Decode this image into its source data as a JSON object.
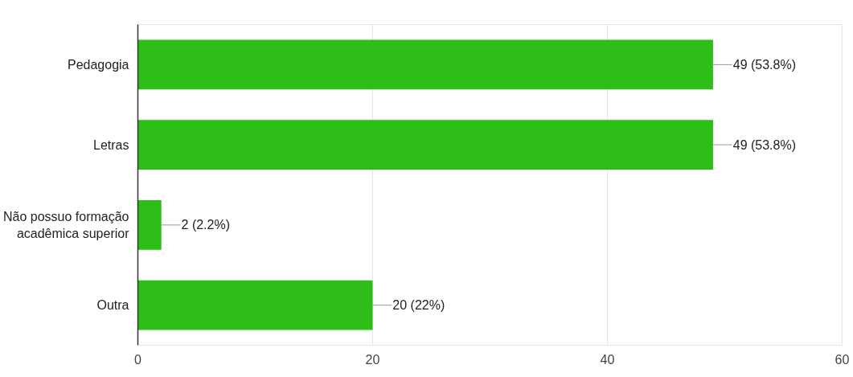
{
  "chart_data": {
    "type": "bar",
    "orientation": "horizontal",
    "categories": [
      "Pedagogia",
      "Letras",
      "Não possuo formação acadêmica superior",
      "Outra"
    ],
    "values": [
      49,
      49,
      2,
      20
    ],
    "value_labels": [
      "49 (53.8%)",
      "49 (53.8%)",
      "2 (2.2%)",
      "20 (22%)"
    ],
    "color": "#2dbe18",
    "xlim": [
      0,
      60
    ],
    "xticks": [
      0,
      20,
      40,
      60
    ],
    "grid": "x"
  }
}
